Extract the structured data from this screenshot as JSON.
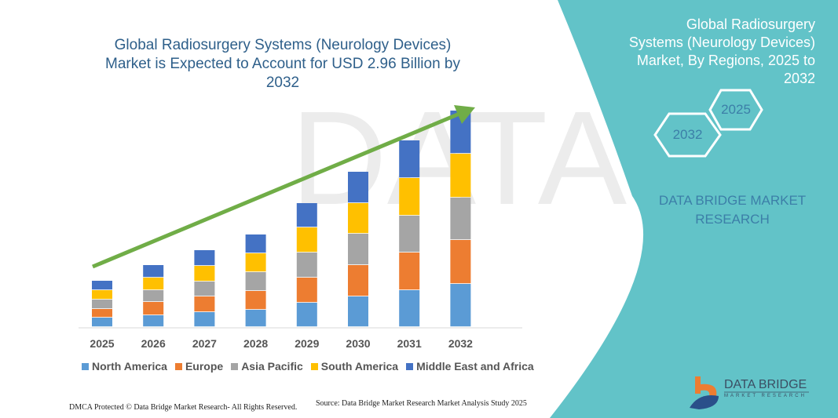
{
  "chart_data": {
    "type": "bar",
    "stacked": true,
    "title": "Global Radiosurgery Systems (Neurology Devices) Market is Expected to Account for USD 2.96 Billion by 2032",
    "categories": [
      "2025",
      "2026",
      "2027",
      "2028",
      "2029",
      "2030",
      "2031",
      "2032"
    ],
    "series": [
      {
        "name": "North America",
        "color": "#5B9BD5",
        "values": [
          12,
          15,
          19,
          22,
          31,
          39,
          47,
          55
        ]
      },
      {
        "name": "Europe",
        "color": "#ED7D31",
        "values": [
          11,
          17,
          20,
          24,
          32,
          40,
          48,
          56
        ]
      },
      {
        "name": "Asia Pacific",
        "color": "#A5A5A5",
        "values": [
          12,
          15,
          19,
          24,
          32,
          40,
          47,
          54
        ]
      },
      {
        "name": "South America",
        "color": "#FFC000",
        "values": [
          12,
          16,
          20,
          24,
          32,
          39,
          48,
          56
        ]
      },
      {
        "name": "Middle East and Africa",
        "color": "#4472C4",
        "values": [
          12,
          16,
          20,
          24,
          31,
          40,
          48,
          55
        ]
      }
    ],
    "y_axis_shown": false,
    "grid": false,
    "legend_placement": "bottom",
    "trend_arrow_color": "#70AD47"
  },
  "panel": {
    "title": "Global Radiosurgery Systems (Neurology Devices) Market, By Regions, 2025 to 2032",
    "hex_a": "2025",
    "hex_b": "2032",
    "brand": "DATA BRIDGE MARKET RESEARCH",
    "color": "#62C3C8"
  },
  "footer": {
    "dmca": "DMCA Protected © Data Bridge Market Research- All Rights Reserved.",
    "source": "Source: Data Bridge Market Research Market Analysis Study 2025"
  },
  "logo": {
    "name": "DATA BRIDGE",
    "sub": "MARKET RESEARCH"
  }
}
